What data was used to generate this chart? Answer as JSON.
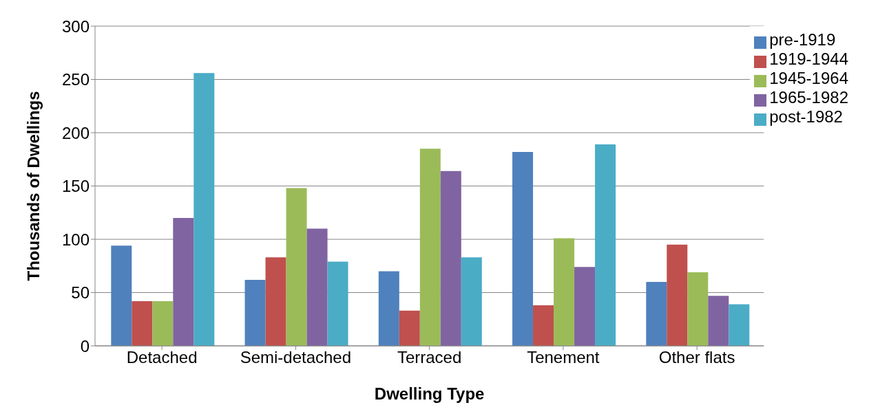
{
  "chart_data": {
    "type": "bar",
    "xlabel": "Dwelling Type",
    "ylabel": "Thousands of Dwellings",
    "categories": [
      "Detached",
      "Semi-detached",
      "Terraced",
      "Tenement",
      "Other flats"
    ],
    "series": [
      {
        "name": "pre-1919",
        "color": "#4f81bd",
        "values": [
          94,
          62,
          70,
          182,
          60
        ]
      },
      {
        "name": "1919-1944",
        "color": "#c0504d",
        "values": [
          42,
          83,
          33,
          38,
          95
        ]
      },
      {
        "name": "1945-1964",
        "color": "#9bbb59",
        "values": [
          42,
          148,
          185,
          101,
          69
        ]
      },
      {
        "name": "1965-1982",
        "color": "#8064a2",
        "values": [
          120,
          110,
          164,
          74,
          47
        ]
      },
      {
        "name": "post-1982",
        "color": "#4bacc6",
        "values": [
          256,
          79,
          83,
          189,
          39
        ]
      }
    ],
    "ylim": [
      0,
      300
    ],
    "yticks": [
      0,
      50,
      100,
      150,
      200,
      250,
      300
    ],
    "grid": "y",
    "legend": "top right"
  }
}
